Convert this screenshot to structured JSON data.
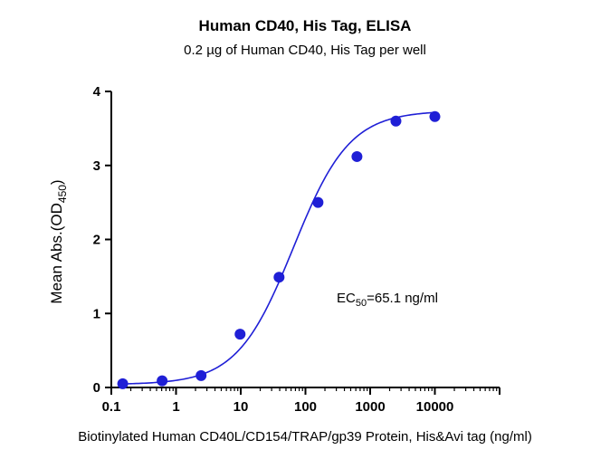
{
  "chart_data": {
    "type": "scatter",
    "title": "Human CD40, His Tag, ELISA",
    "subtitle": "0.2 µg of Human CD40, His Tag per well",
    "xlabel": "Biotinylated Human CD40L/CD154/TRAP/gp39 Protein, His&Avi tag (ng/ml)",
    "ylabel": {
      "prefix": "Mean Abs.(OD",
      "sub": "450",
      "suffix": ")"
    },
    "x_scale": "log",
    "xlim": [
      0.1,
      100000
    ],
    "ylim": [
      0,
      4
    ],
    "x_ticks": [
      {
        "value": 0.1,
        "label": "0.1"
      },
      {
        "value": 1,
        "label": "1"
      },
      {
        "value": 10,
        "label": "10"
      },
      {
        "value": 100,
        "label": "100"
      },
      {
        "value": 1000,
        "label": "1000"
      },
      {
        "value": 10000,
        "label": "10000"
      }
    ],
    "y_ticks": [
      {
        "value": 0,
        "label": "0"
      },
      {
        "value": 1,
        "label": "1"
      },
      {
        "value": 2,
        "label": "2"
      },
      {
        "value": 3,
        "label": "3"
      },
      {
        "value": 4,
        "label": "4"
      }
    ],
    "series": [
      {
        "x": [
          0.15,
          0.61,
          2.44,
          9.77,
          39.1,
          156.3,
          625,
          2500,
          10000
        ],
        "y": [
          0.05,
          0.09,
          0.16,
          0.72,
          1.49,
          2.5,
          3.12,
          3.6,
          3.66
        ]
      }
    ],
    "fit_curve": {
      "model": "4PL",
      "bottom": 0.04,
      "top": 3.74,
      "ec50": 65.1,
      "hill": 1.0
    },
    "annotation": {
      "prefix": "EC",
      "sub": "50",
      "suffix": "=65.1 ng/ml"
    },
    "grid": false,
    "colors": {
      "series": "#1f1fd6",
      "axis": "#000000"
    }
  }
}
